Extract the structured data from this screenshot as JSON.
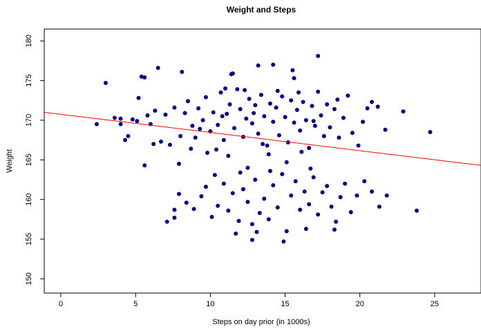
{
  "chart_data": {
    "type": "scatter",
    "title": "Weight and Steps",
    "x_label": "Steps on day prior (in 1000s)",
    "y_label": "Weight",
    "color": "#00008b",
    "xlim": [
      -1.11,
      28.1
    ],
    "ylim": [
      148.2,
      181.5
    ],
    "xticks": [
      0,
      5,
      10,
      15,
      20,
      25
    ],
    "yticks": [
      150,
      155,
      160,
      165,
      170,
      175,
      180
    ],
    "x": [
      2.4,
      3.0,
      17.2,
      6.5,
      5.4,
      5.6,
      8.1,
      11.5,
      11.4,
      13.2,
      14.2,
      15.5,
      15.6,
      24.7,
      23.8,
      22.9,
      21.7,
      21.2,
      20.8,
      14.9,
      12.8,
      7.1,
      7.6,
      7.6,
      5.6,
      4.0,
      3.6,
      4.3,
      4.0,
      4.5,
      4.8,
      5.1,
      5.2,
      5.8,
      6.0,
      6.3,
      6.7,
      7.0,
      7.3,
      7.6,
      8.0,
      8.3,
      8.5,
      8.8,
      9.0,
      9.2,
      9.5,
      9.7,
      10.0,
      10.2,
      10.5,
      10.7,
      10.9,
      11.1,
      11.3,
      11.6,
      11.8,
      12.0,
      12.2,
      12.4,
      12.6,
      12.8,
      13.0,
      13.2,
      13.4,
      13.6,
      13.8,
      14.0,
      14.2,
      14.4,
      14.6,
      14.8,
      15.0,
      15.2,
      15.4,
      15.6,
      15.8,
      16.0,
      16.2,
      16.4,
      16.6,
      16.8,
      17.0,
      17.2,
      17.4,
      17.6,
      17.8,
      18.0,
      18.3,
      18.6,
      18.9,
      19.2,
      19.5,
      19.9,
      20.2,
      20.5,
      9.8,
      10.4,
      11.2,
      8.7,
      6.2,
      7.9,
      12.5,
      13.9,
      15.1,
      16.1,
      11.0,
      12.3,
      14.5,
      15.9,
      13.5,
      9.3,
      10.8,
      12.9,
      16.9,
      18.5,
      7.9,
      8.4,
      8.9,
      9.4,
      9.7,
      10.1,
      10.5,
      10.9,
      11.2,
      11.5,
      11.9,
      12.2,
      12.5,
      12.8,
      13.0,
      13.3,
      13.6,
      13.9,
      14.2,
      14.5,
      14.8,
      15.1,
      15.4,
      15.7,
      16.0,
      16.3,
      16.6,
      16.9,
      17.2,
      17.5,
      17.8,
      18.1,
      18.4,
      18.7,
      19.0,
      19.4,
      19.8,
      20.3,
      20.8,
      21.3,
      21.8,
      11.7,
      13.1,
      18.3,
      16.4,
      12.0,
      14.0,
      10.3,
      16.7
    ],
    "values": [
      169.5,
      174.7,
      178.1,
      176.6,
      175.5,
      175.4,
      176.1,
      175.9,
      175.8,
      176.9,
      177.0,
      176.3,
      175.3,
      168.5,
      158.6,
      171.1,
      168.8,
      171.7,
      172.3,
      154.7,
      154.9,
      157.2,
      158.7,
      157.7,
      164.3,
      170.2,
      170.3,
      167.5,
      169.5,
      168.0,
      170.1,
      169.9,
      172.8,
      170.6,
      169.5,
      171.2,
      167.3,
      170.7,
      166.9,
      171.6,
      168.0,
      170.9,
      172.4,
      169.3,
      167.8,
      171.5,
      170.0,
      172.9,
      168.6,
      171.0,
      169.4,
      173.5,
      167.5,
      170.8,
      172.0,
      169.0,
      173.9,
      171.4,
      167.9,
      170.2,
      172.7,
      169.6,
      171.9,
      168.3,
      173.2,
      170.5,
      166.8,
      172.1,
      169.8,
      171.6,
      168.1,
      173.0,
      170.4,
      167.2,
      172.5,
      169.7,
      171.3,
      168.7,
      172.3,
      170.0,
      166.5,
      171.8,
      169.3,
      173.6,
      170.6,
      168.0,
      172.0,
      169.1,
      171.4,
      167.8,
      170.3,
      173.1,
      168.4,
      166.8,
      169.8,
      171.5,
      165.9,
      166.3,
      165.5,
      166.4,
      167.0,
      164.5,
      164.0,
      165.7,
      164.7,
      166.0,
      174.0,
      173.8,
      173.7,
      173.5,
      167.0,
      168.9,
      170.5,
      170.9,
      169.9,
      172.6,
      160.7,
      159.6,
      158.8,
      160.4,
      161.6,
      157.8,
      159.2,
      162.0,
      158.6,
      160.8,
      157.3,
      161.3,
      159.7,
      156.9,
      162.5,
      158.3,
      160.1,
      157.5,
      161.8,
      159.0,
      163.2,
      156.0,
      160.5,
      162.3,
      158.7,
      161.0,
      159.4,
      162.8,
      158.1,
      160.9,
      161.7,
      159.1,
      157.2,
      160.3,
      162.0,
      158.4,
      160.5,
      162.3,
      161.0,
      159.1,
      160.5,
      155.7,
      155.9,
      156.2,
      156.3,
      163.4,
      163.6,
      163.1,
      163.9
    ],
    "trend_line": {
      "x": [
        -1.11,
        28.1
      ],
      "y": [
        171.0,
        164.3
      ],
      "color": "#ff0000"
    }
  }
}
